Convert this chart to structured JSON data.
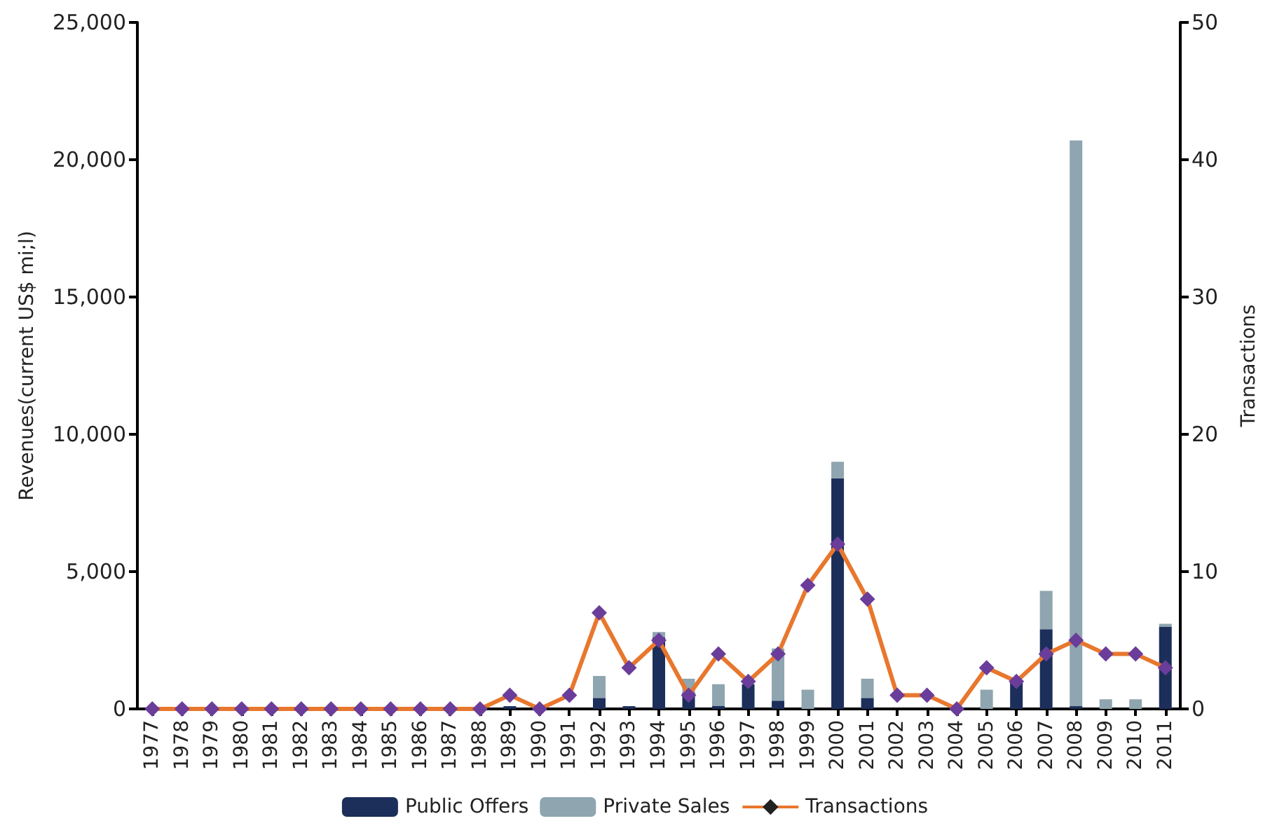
{
  "chart_data": {
    "type": "bar",
    "stacked": true,
    "ylabel": "Revenues(current US$ mi;l)",
    "y2label": "Transactions",
    "categories": [
      "1977",
      "1978",
      "1979",
      "1980",
      "1981",
      "1982",
      "1983",
      "1984",
      "1985",
      "1986",
      "1987",
      "1988",
      "1989",
      "1990",
      "1991",
      "1992",
      "1993",
      "1994",
      "1995",
      "1996",
      "1997",
      "1998",
      "1999",
      "2000",
      "2001",
      "2002",
      "2003",
      "2004",
      "2005",
      "2006",
      "2007",
      "2008",
      "2009",
      "2010",
      "2011"
    ],
    "series": [
      {
        "name": "Public Offers",
        "color": "#1c2e5a",
        "values": [
          null,
          null,
          null,
          null,
          null,
          null,
          null,
          null,
          null,
          null,
          null,
          null,
          100,
          null,
          null,
          400,
          100,
          2600,
          600,
          100,
          900,
          300,
          null,
          8400,
          400,
          null,
          null,
          null,
          null,
          1000,
          2900,
          100,
          null,
          null,
          3000
        ]
      },
      {
        "name": "Private Sales",
        "color": "#8fa5b0",
        "values": [
          null,
          null,
          null,
          null,
          null,
          null,
          null,
          null,
          null,
          null,
          null,
          null,
          null,
          null,
          null,
          800,
          null,
          200,
          500,
          800,
          null,
          1900,
          700,
          600,
          700,
          null,
          null,
          null,
          700,
          null,
          1400,
          20600,
          350,
          350,
          100
        ]
      },
      {
        "name": "Transactions",
        "type": "line",
        "axis": "y2",
        "color": "#e8772e",
        "marker": "diamond",
        "values": [
          0,
          0,
          0,
          0,
          0,
          0,
          0,
          0,
          0,
          0,
          0,
          0,
          1,
          0,
          1,
          7,
          3,
          5,
          1,
          4,
          2,
          4,
          9,
          12,
          8,
          1,
          1,
          0,
          3,
          2,
          4,
          5,
          4,
          4,
          3
        ]
      }
    ],
    "ylim": [
      0,
      25000
    ],
    "yticks": [
      0,
      {
        "value": 5000,
        "label": "5,000"
      },
      {
        "value": 10000,
        "label": "10,000"
      },
      {
        "value": 15000,
        "label": "15,000"
      },
      {
        "value": 20000,
        "label": "20,000"
      },
      {
        "value": 25000,
        "label": "25,000"
      }
    ],
    "y2lim": [
      0,
      50
    ],
    "y2ticks": [
      0,
      10,
      20,
      30,
      40,
      50
    ],
    "grid": false,
    "legend": "bottom"
  }
}
